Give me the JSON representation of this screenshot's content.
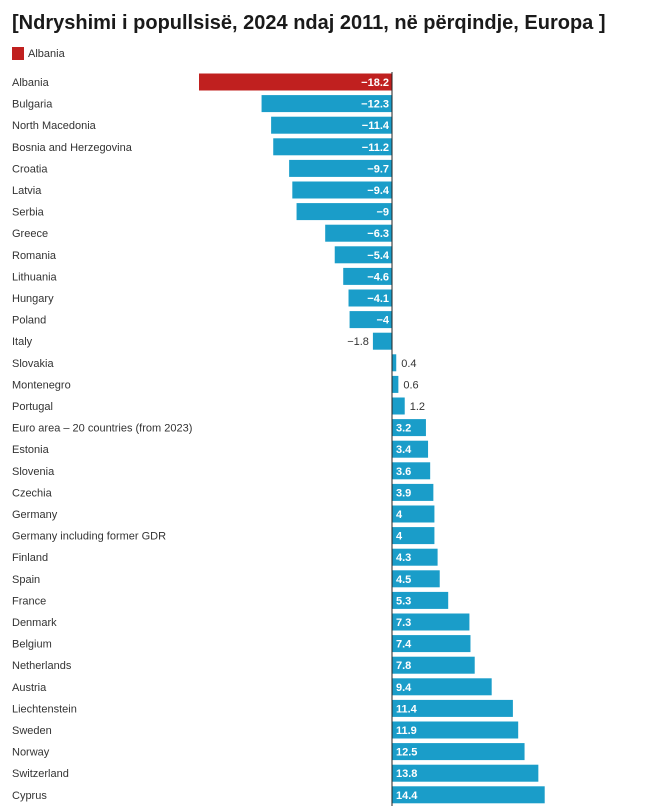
{
  "header": {
    "title": "[Ndryshimi i popullsisë, 2024 ndaj 2011, në përqindje, Europa ]"
  },
  "legend": {
    "label": "Albania",
    "color": "#c0201f"
  },
  "colors": {
    "highlight": "#c0201f",
    "default": "#1a9dc9"
  },
  "chart_data": {
    "type": "bar",
    "orientation": "horizontal",
    "categories": [
      "Albania",
      "Bulgaria",
      "North Macedonia",
      "Bosnia and Herzegovina",
      "Croatia",
      "Latvia",
      "Serbia",
      "Greece",
      "Romania",
      "Lithuania",
      "Hungary",
      "Poland",
      "Italy",
      "Slovakia",
      "Montenegro",
      "Portugal",
      "Euro area – 20 countries (from 2023)",
      "Estonia",
      "Slovenia",
      "Czechia",
      "Germany",
      "Germany including former GDR",
      "Finland",
      "Spain",
      "France",
      "Denmark",
      "Belgium",
      "Netherlands",
      "Austria",
      "Liechtenstein",
      "Sweden",
      "Norway",
      "Switzerland",
      "Cyprus"
    ],
    "values": [
      -18.2,
      -12.3,
      -11.4,
      -11.2,
      -9.7,
      -9.4,
      -9,
      -6.3,
      -5.4,
      -4.6,
      -4.1,
      -4,
      -1.8,
      0.4,
      0.6,
      1.2,
      3.2,
      3.4,
      3.6,
      3.9,
      4,
      4,
      4.3,
      4.5,
      5.3,
      7.3,
      7.4,
      7.8,
      9.4,
      11.4,
      11.9,
      12.5,
      13.8,
      14.4
    ],
    "labels": [
      "−18.2",
      "−12.3",
      "−11.4",
      "−11.2",
      "−9.7",
      "−9.4",
      "−9",
      "−6.3",
      "−5.4",
      "−4.6",
      "−4.1",
      "−4",
      "−1.8",
      "0.4",
      "0.6",
      "1.2",
      "3.2",
      "3.4",
      "3.6",
      "3.9",
      "4",
      "4",
      "4.3",
      "4.5",
      "5.3",
      "7.3",
      "7.4",
      "7.8",
      "9.4",
      "11.4",
      "11.9",
      "12.5",
      "13.8",
      "14.4"
    ],
    "highlight": [
      "Albania"
    ],
    "series": [
      {
        "name": "Albania"
      }
    ],
    "xlim": [
      -18.2,
      14.4
    ],
    "grid": false,
    "legend_position": "top-left"
  }
}
